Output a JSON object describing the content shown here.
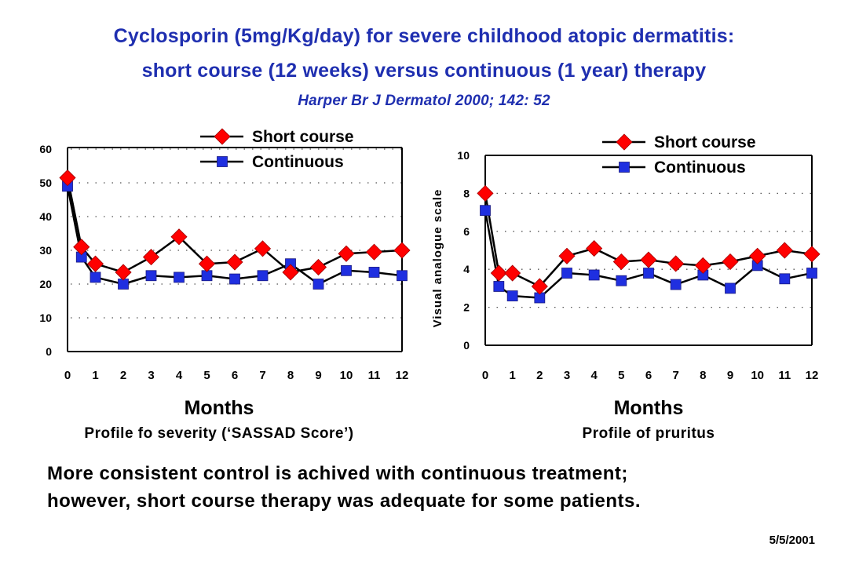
{
  "header": {
    "title_line1": "Cyclosporin (5mg/Kg/day) for severe childhood atopic dermatitis:",
    "title_line2": "short course (12 weeks) versus continuous (1 year) therapy",
    "citation": "Harper  Br J Dermatol 2000; 142: 52"
  },
  "chart_data": [
    {
      "type": "line",
      "xlabel": "Months",
      "caption": "Profile fo severity (‘SASSAD Score’)",
      "ylabel": "",
      "ylim": [
        0,
        60
      ],
      "yticks": [
        0,
        10,
        20,
        30,
        40,
        50,
        60
      ],
      "x": [
        0,
        0.5,
        1,
        2,
        3,
        4,
        5,
        6,
        7,
        8,
        9,
        10,
        11,
        12
      ],
      "x_tick_labels": [
        "0",
        "1",
        "2",
        "3",
        "4",
        "5",
        "6",
        "7",
        "8",
        "9",
        "10",
        "11",
        "12"
      ],
      "grid": "dotted horizontal",
      "legend_position": "top-center",
      "series": [
        {
          "name": "Short course",
          "marker": "diamond",
          "color": "#ff0000",
          "values": [
            51.5,
            31,
            26,
            23.5,
            28,
            34,
            26,
            26.5,
            30.5,
            23.5,
            25,
            29,
            29.5,
            30
          ]
        },
        {
          "name": "Continuous",
          "marker": "square",
          "color": "#1f2fe0",
          "values": [
            49,
            28,
            22,
            20,
            22.5,
            22,
            22.5,
            21.5,
            22.5,
            26,
            20,
            24,
            23.5,
            22.5
          ]
        }
      ]
    },
    {
      "type": "line",
      "xlabel": "Months",
      "caption": "Profile of pruritus",
      "ylabel": "Visual analogue scale",
      "ylim": [
        0,
        10
      ],
      "yticks": [
        0,
        2,
        4,
        6,
        8,
        10
      ],
      "x": [
        0,
        0.5,
        1,
        2,
        3,
        4,
        5,
        6,
        7,
        8,
        9,
        10,
        11,
        12
      ],
      "x_tick_labels": [
        "0",
        "1",
        "2",
        "3",
        "4",
        "5",
        "6",
        "7",
        "8",
        "9",
        "10",
        "11",
        "12"
      ],
      "grid": "dotted horizontal",
      "legend_position": "top-center",
      "series": [
        {
          "name": "Short course",
          "marker": "diamond",
          "color": "#ff0000",
          "values": [
            8,
            3.8,
            3.8,
            3.1,
            4.7,
            5.1,
            4.4,
            4.5,
            4.3,
            4.2,
            4.4,
            4.7,
            5,
            4.8
          ]
        },
        {
          "name": "Continuous",
          "marker": "square",
          "color": "#1f2fe0",
          "values": [
            7.1,
            3.1,
            2.6,
            2.5,
            3.8,
            3.7,
            3.4,
            3.8,
            3.2,
            3.7,
            3,
            4.2,
            3.5,
            3.8
          ]
        }
      ]
    }
  ],
  "footer": {
    "conclusion_line1": "More consistent control is achived with continuous treatment;",
    "conclusion_line2": "however, short course therapy was adequate for some patients.",
    "date": "5/5/2001"
  }
}
